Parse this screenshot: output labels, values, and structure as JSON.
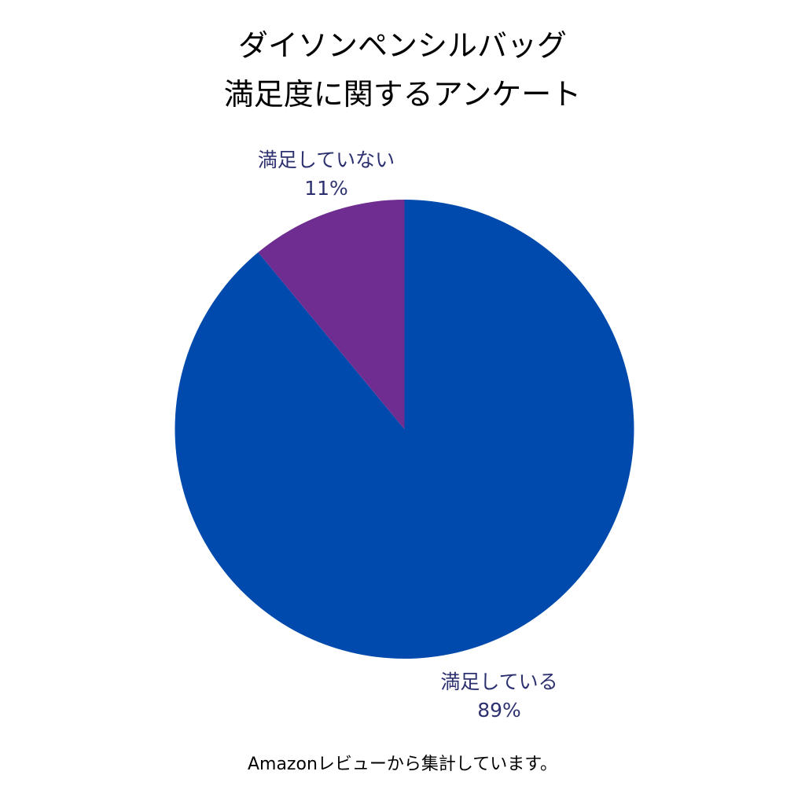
{
  "chart_data": {
    "type": "pie",
    "title": "ダイソンペンシルバッグ 満足度に関するアンケート",
    "title_lines": [
      "ダイソンペンシルバッグ",
      "満足度に関するアンケート"
    ],
    "categories": [
      "満足している",
      "満足していない"
    ],
    "values": [
      89,
      11
    ],
    "unit": "%",
    "colors": [
      "#004aad",
      "#6f2d91"
    ],
    "labels": [
      {
        "name": "満足している",
        "value_label": "89%"
      },
      {
        "name": "満足していない",
        "value_label": "11%"
      }
    ],
    "start_angle": "12 o'clock",
    "legend": "none (inline labels)",
    "footnote": "Amazonレビューから集計しています。"
  },
  "colors": {
    "satisfied": "#004aad",
    "unsatisfied": "#6f2d91",
    "label_text": "#2e3170",
    "title_text": "#000000"
  }
}
